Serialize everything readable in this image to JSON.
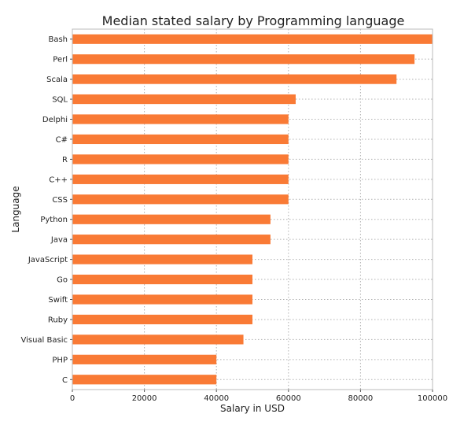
{
  "chart_data": {
    "type": "bar",
    "orientation": "horizontal",
    "title": "Median stated salary by Programming language",
    "xlabel": "Salary in USD",
    "ylabel": "Language",
    "categories": [
      "Bash",
      "Perl",
      "Scala",
      "SQL",
      "Delphi",
      "C#",
      "R",
      "C++",
      "CSS",
      "Python",
      "Java",
      "JavaScript",
      "Go",
      "Swift",
      "Ruby",
      "Visual Basic",
      "PHP",
      "C"
    ],
    "values": [
      100000,
      95000,
      90000,
      62000,
      60000,
      60000,
      60000,
      60000,
      60000,
      55000,
      55000,
      50000,
      50000,
      50000,
      50000,
      47500,
      40000,
      40000
    ],
    "xlim": [
      0,
      100000
    ],
    "xticks": [
      0,
      20000,
      40000,
      60000,
      80000,
      100000
    ],
    "grid": true,
    "colors": {
      "bar": "#f97a35"
    }
  }
}
